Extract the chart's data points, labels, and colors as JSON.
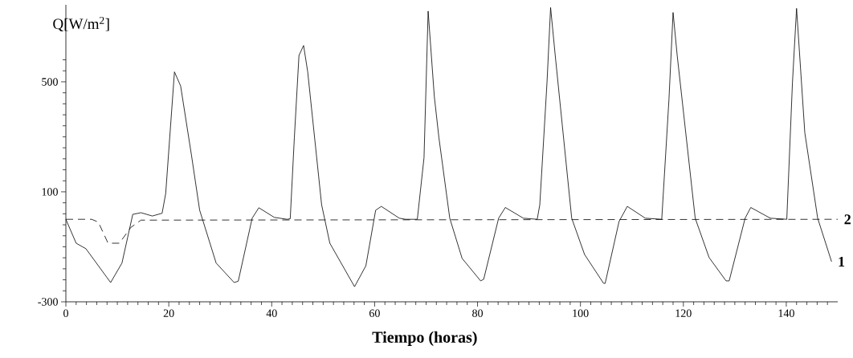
{
  "chart_data": {
    "type": "line",
    "xlabel": "Tiempo (horas)",
    "ylabel": "Q[W/m$^{2}$]",
    "xlim": [
      0,
      150
    ],
    "ylim": [
      -300,
      780
    ],
    "xticks": [
      0,
      {
        "value": 2,
        "label": null
      },
      {
        "value": 4,
        "label": null
      },
      {
        "value": 6,
        "label": null
      },
      {
        "value": 8,
        "label": null
      },
      {
        "value": 10,
        "label": null
      },
      {
        "value": 12,
        "label": null
      },
      {
        "value": 14,
        "label": null
      },
      {
        "value": 16,
        "label": null
      },
      {
        "value": 18,
        "label": null
      },
      20,
      {
        "value": 22,
        "label": null
      },
      {
        "value": 24,
        "label": null
      },
      {
        "value": 26,
        "label": null
      },
      {
        "value": 28,
        "label": null
      },
      {
        "value": 30,
        "label": null
      },
      {
        "value": 32,
        "label": null
      },
      {
        "value": 34,
        "label": null
      },
      {
        "value": 36,
        "label": null
      },
      {
        "value": 38,
        "label": null
      },
      40,
      {
        "value": 42,
        "label": null
      },
      {
        "value": 44,
        "label": null
      },
      {
        "value": 46,
        "label": null
      },
      {
        "value": 48,
        "label": null
      },
      {
        "value": 50,
        "label": null
      },
      {
        "value": 52,
        "label": null
      },
      {
        "value": 54,
        "label": null
      },
      {
        "value": 56,
        "label": null
      },
      {
        "value": 58,
        "label": null
      },
      60,
      {
        "value": 62,
        "label": null
      },
      {
        "value": 64,
        "label": null
      },
      {
        "value": 66,
        "label": null
      },
      {
        "value": 68,
        "label": null
      },
      {
        "value": 70,
        "label": null
      },
      {
        "value": 72,
        "label": null
      },
      {
        "value": 74,
        "label": null
      },
      {
        "value": 76,
        "label": null
      },
      {
        "value": 78,
        "label": null
      },
      80,
      {
        "value": 82,
        "label": null
      },
      {
        "value": 84,
        "label": null
      },
      {
        "value": 86,
        "label": null
      },
      {
        "value": 88,
        "label": null
      },
      {
        "value": 90,
        "label": null
      },
      {
        "value": 92,
        "label": null
      },
      {
        "value": 94,
        "label": null
      },
      {
        "value": 96,
        "label": null
      },
      {
        "value": 98,
        "label": null
      },
      100,
      {
        "value": 102,
        "label": null
      },
      {
        "value": 104,
        "label": null
      },
      {
        "value": 106,
        "label": null
      },
      {
        "value": 108,
        "label": null
      },
      {
        "value": 110,
        "label": null
      },
      {
        "value": 112,
        "label": null
      },
      {
        "value": 114,
        "label": null
      },
      {
        "value": 116,
        "label": null
      },
      {
        "value": 118,
        "label": null
      },
      120,
      {
        "value": 122,
        "label": null
      },
      {
        "value": 124,
        "label": null
      },
      {
        "value": 126,
        "label": null
      },
      {
        "value": 128,
        "label": null
      },
      {
        "value": 130,
        "label": null
      },
      {
        "value": 132,
        "label": null
      },
      {
        "value": 134,
        "label": null
      },
      {
        "value": 136,
        "label": null
      },
      {
        "value": 138,
        "label": null
      },
      140,
      {
        "value": 142,
        "label": null
      },
      {
        "value": 144,
        "label": null
      },
      {
        "value": 146,
        "label": null
      },
      {
        "value": 148,
        "label": null
      }
    ],
    "yticks": [
      -300,
      {
        "value": -260,
        "label": null
      },
      {
        "value": -220,
        "label": null
      },
      {
        "value": -180,
        "label": null
      },
      {
        "value": -140,
        "label": null
      },
      {
        "value": -100,
        "label": null
      },
      {
        "value": -60,
        "label": null
      },
      {
        "value": -20,
        "label": null
      },
      {
        "value": 20,
        "label": null
      },
      {
        "value": 60,
        "label": null
      },
      100,
      {
        "value": 140,
        "label": null
      },
      {
        "value": 180,
        "label": null
      },
      {
        "value": 220,
        "label": null
      },
      {
        "value": 260,
        "label": null
      },
      {
        "value": 300,
        "label": null
      },
      {
        "value": 340,
        "label": null
      },
      {
        "value": 380,
        "label": null
      },
      {
        "value": 420,
        "label": null
      },
      {
        "value": 460,
        "label": null
      },
      500,
      {
        "value": 540,
        "label": null
      },
      {
        "value": 580,
        "label": null
      }
    ],
    "marker": "none",
    "grid": false,
    "legend": false,
    "series": [
      {
        "name": "1",
        "color": "#000000",
        "line_style": "solid",
        "x": [
          0,
          2,
          3.9,
          8.7,
          10.9,
          13,
          14.6,
          16.8,
          18.7,
          19.4,
          21.1,
          22.3,
          24.4,
          26,
          29.2,
          32.7,
          33.5,
          36.2,
          37.5,
          40.5,
          43,
          43.6,
          44.4,
          45.3,
          46.2,
          47,
          49.7,
          51.3,
          56.1,
          58.3,
          60.2,
          61.3,
          64.8,
          66,
          68.3,
          69.6,
          70.4,
          71.6,
          72.5,
          74.6,
          77,
          80.6,
          81.2,
          84.1,
          85.4,
          88.9,
          91.6,
          92.1,
          93.5,
          94.2,
          95.1,
          98.3,
          100.8,
          104.5,
          104.8,
          107.5,
          109.1,
          112.6,
          115.8,
          117.2,
          118,
          118.8,
          122.3,
          125,
          128.3,
          128.9,
          132,
          133.1,
          136.9,
          140.1,
          141.2,
          142,
          143.6,
          146.1,
          148.8
        ],
        "values": [
          0,
          -87,
          -107,
          -230,
          -159,
          18,
          24,
          12,
          22,
          94,
          536,
          485,
          234,
          33,
          -159,
          -230,
          -225,
          4,
          42,
          7,
          0,
          2,
          296,
          596,
          632,
          536,
          53,
          -87,
          -245,
          -169,
          33,
          47,
          4,
          0,
          0,
          224,
          757,
          447,
          296,
          4,
          -142,
          -224,
          -218,
          4,
          43,
          4,
          0,
          53,
          497,
          770,
          596,
          4,
          -128,
          -233,
          -233,
          -8,
          47,
          4,
          0,
          436,
          752,
          596,
          4,
          -139,
          -224,
          -224,
          4,
          43,
          4,
          0,
          497,
          767,
          315,
          4,
          -154
        ]
      },
      {
        "name": "2",
        "color": "#000000",
        "line_style": "dashed",
        "x": [
          0,
          5,
          6.3,
          8.2,
          10.4,
          12.6,
          14.6,
          150
        ],
        "values": [
          0,
          0,
          -10,
          -87,
          -87,
          -30,
          -3,
          0
        ]
      }
    ]
  }
}
